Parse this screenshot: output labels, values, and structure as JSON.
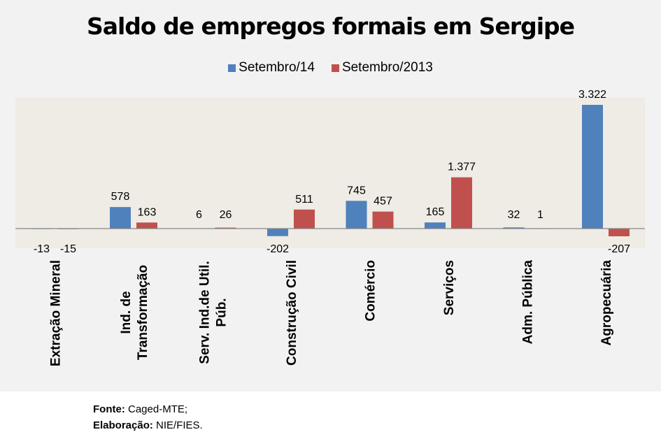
{
  "chart_data": {
    "type": "bar",
    "title": "Saldo de empregos formais em Sergipe",
    "xlabel": "",
    "ylabel": "",
    "ylim": [
      -520,
      3700
    ],
    "grid": false,
    "legend_position": "top",
    "categories": [
      [
        "Extração Mineral"
      ],
      [
        "Ind. de",
        "Transformação"
      ],
      [
        "Serv. Ind.de Util.",
        "Púb."
      ],
      [
        "Construção Civil"
      ],
      [
        "Comércio"
      ],
      [
        "Serviços"
      ],
      [
        "Adm. Pública"
      ],
      [
        "Agropecuária"
      ]
    ],
    "series": [
      {
        "name": "Setembro/14",
        "color": "#4f81bd",
        "values": [
          -13,
          578,
          6,
          -202,
          745,
          165,
          32,
          3322
        ],
        "labels": [
          "-13",
          "578",
          "6",
          "-202",
          "745",
          "165",
          "32",
          "3.322"
        ]
      },
      {
        "name": "Setembro/2013",
        "color": "#c0504d",
        "values": [
          -15,
          163,
          26,
          511,
          457,
          1377,
          1,
          -207
        ],
        "labels": [
          "-15",
          "163",
          "26",
          "511",
          "457",
          "1.377",
          "1",
          "-207"
        ]
      }
    ]
  },
  "colors": {
    "plot_background": "#eeece4",
    "chart_background": "#f2f2f2",
    "axis_line": "#868686"
  },
  "footer": {
    "source_label": "Fonte:",
    "source_value": "Caged-MTE;",
    "credit_label": "Elaboração:",
    "credit_value": "NIE/FIES."
  }
}
